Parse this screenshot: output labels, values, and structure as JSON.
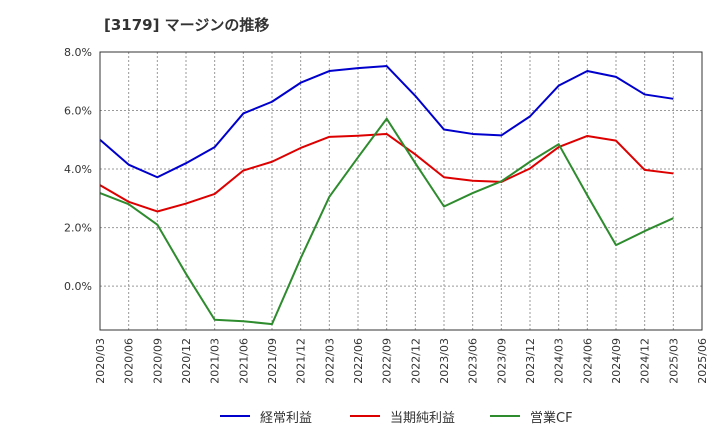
{
  "title": "[3179]  マージンの推移",
  "colors": {
    "grid": "#999999",
    "axis": "#333333",
    "background": "#ffffff"
  },
  "chart_data": {
    "type": "line",
    "title": "[3179]  マージンの推移",
    "xlabel": "",
    "ylabel": "",
    "x": [
      "2020/03",
      "2020/06",
      "2020/09",
      "2020/12",
      "2021/03",
      "2021/06",
      "2021/09",
      "2021/12",
      "2022/03",
      "2022/06",
      "2022/09",
      "2022/12",
      "2023/03",
      "2023/06",
      "2023/09",
      "2023/12",
      "2024/03",
      "2024/06",
      "2024/09",
      "2024/12",
      "2025/03",
      "2025/06"
    ],
    "ylim": [
      -1.5,
      8.0
    ],
    "yticks": [
      0.0,
      2.0,
      4.0,
      6.0,
      8.0
    ],
    "ytick_labels": [
      "0.0%",
      "2.0%",
      "4.0%",
      "6.0%",
      "8.0%"
    ],
    "grid": true,
    "legend_position": "bottom",
    "series": [
      {
        "name": "経常利益",
        "color": "#0000cc",
        "values": [
          5.0,
          4.15,
          3.72,
          4.2,
          4.75,
          5.9,
          6.3,
          6.95,
          7.35,
          7.45,
          7.52,
          6.5,
          5.35,
          5.2,
          5.15,
          5.8,
          6.85,
          7.35,
          7.15,
          6.55,
          6.4,
          null
        ]
      },
      {
        "name": "当期純利益",
        "color": "#dd0000",
        "values": [
          3.45,
          2.88,
          2.55,
          2.82,
          3.15,
          3.95,
          4.25,
          4.72,
          5.1,
          5.14,
          5.2,
          4.5,
          3.72,
          3.6,
          3.56,
          4.02,
          4.75,
          5.13,
          4.97,
          3.97,
          3.85,
          null
        ]
      },
      {
        "name": "営業CF",
        "color": "#2e8b2e",
        "values": [
          3.18,
          2.8,
          2.1,
          0.42,
          -1.15,
          -1.2,
          -1.3,
          0.95,
          3.05,
          4.4,
          5.72,
          4.2,
          2.72,
          3.18,
          3.58,
          4.25,
          4.85,
          3.1,
          1.4,
          1.88,
          2.32,
          null
        ]
      }
    ]
  }
}
